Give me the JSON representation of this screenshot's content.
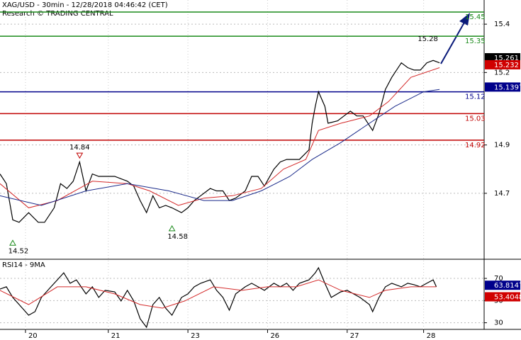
{
  "chart_data": [
    {
      "type": "line",
      "title": "XAG/USD - 30min - 12/28/2018 04:46:42 (CET)",
      "subtitle": "Research © TRADING CENTRAL",
      "xlim": [
        0,
        152
      ],
      "ylim": [
        14.43,
        15.5
      ],
      "xticks": [
        {
          "value": 8,
          "label": "20"
        },
        {
          "value": 34,
          "label": "21"
        },
        {
          "value": 59,
          "label": "23"
        },
        {
          "value": 84,
          "label": "26"
        },
        {
          "value": 109,
          "label": "27"
        },
        {
          "value": 133,
          "label": "28"
        }
      ],
      "yticks": [
        14.7,
        14.9,
        15.2,
        15.4
      ],
      "grid": true,
      "series": [
        {
          "color": "#000000",
          "x": [
            0,
            2,
            4,
            6,
            9,
            12,
            14,
            17,
            19,
            21,
            23,
            25,
            27,
            29,
            31,
            33,
            36,
            38,
            40,
            42,
            44,
            46,
            48,
            50,
            52,
            54,
            57,
            59,
            61,
            63,
            66,
            68,
            70,
            72,
            74,
            77,
            79,
            81,
            83,
            86,
            88,
            90,
            92,
            94,
            97,
            98,
            99,
            100,
            102,
            103,
            106,
            108,
            110,
            112,
            114,
            117,
            119,
            121,
            123,
            126,
            128,
            130,
            132,
            134,
            136,
            138
          ],
          "values": [
            14.78,
            14.74,
            14.59,
            14.58,
            14.62,
            14.58,
            14.58,
            14.64,
            14.74,
            14.72,
            14.75,
            14.83,
            14.71,
            14.78,
            14.77,
            14.77,
            14.77,
            14.76,
            14.75,
            14.73,
            14.67,
            14.62,
            14.69,
            14.64,
            14.65,
            14.64,
            14.62,
            14.64,
            14.67,
            14.69,
            14.72,
            14.71,
            14.71,
            14.67,
            14.68,
            14.71,
            14.77,
            14.77,
            14.73,
            14.8,
            14.83,
            14.84,
            14.84,
            14.84,
            14.88,
            14.99,
            15.06,
            15.12,
            15.06,
            14.99,
            15.0,
            15.02,
            15.04,
            15.02,
            15.02,
            14.96,
            15.03,
            15.13,
            15.18,
            15.24,
            15.22,
            15.21,
            15.21,
            15.24,
            15.25,
            15.24
          ]
        },
        {
          "color": "#d42a2a",
          "x": [
            0,
            9,
            18,
            29,
            40,
            47,
            56,
            64,
            73,
            82,
            89,
            96,
            100,
            107,
            116,
            122,
            129,
            138
          ],
          "values": [
            14.74,
            14.64,
            14.67,
            14.75,
            14.74,
            14.71,
            14.65,
            14.68,
            14.69,
            14.72,
            14.8,
            14.84,
            14.96,
            14.99,
            15.02,
            15.08,
            15.18,
            15.22
          ]
        },
        {
          "color": "#1a2a8a",
          "x": [
            0,
            13,
            27,
            40,
            53,
            64,
            73,
            82,
            91,
            98,
            107,
            116,
            124,
            133,
            138
          ],
          "values": [
            14.69,
            14.65,
            14.71,
            14.74,
            14.71,
            14.67,
            14.67,
            14.71,
            14.77,
            14.84,
            14.91,
            14.99,
            15.06,
            15.12,
            15.13
          ]
        }
      ],
      "levels": [
        {
          "value": 15.45,
          "color": "#1a8a1a"
        },
        {
          "value": 15.35,
          "color": "#1a8a1a"
        },
        {
          "value": 15.12,
          "color": "#00008b"
        },
        {
          "value": 15.03,
          "color": "#c00000"
        },
        {
          "value": 14.92,
          "color": "#c00000"
        }
      ],
      "annotations": [
        {
          "x": 25,
          "value": 14.84,
          "marker": "down"
        },
        {
          "x": 4,
          "value": 14.52,
          "marker": "up"
        },
        {
          "x": 54,
          "value": 14.58,
          "marker": "up"
        },
        {
          "x": 137,
          "value": 15.28,
          "marker": "none"
        }
      ],
      "price_labels": [
        {
          "value": 15.261,
          "color": "#000000"
        },
        {
          "value": 15.232,
          "color": "#d00000"
        },
        {
          "value": 15.1397,
          "color": "#00008b"
        }
      ]
    },
    {
      "type": "line",
      "title": "RSI14 - 9MA",
      "xlim": [
        0,
        152
      ],
      "ylim": [
        24,
        86
      ],
      "yticks": [
        30,
        50,
        70
      ],
      "grid": true,
      "series": [
        {
          "color": "#000000",
          "x": [
            0,
            2,
            4,
            7,
            9,
            11,
            13,
            16,
            18,
            20,
            22,
            24,
            27,
            29,
            31,
            33,
            36,
            38,
            40,
            42,
            44,
            46,
            48,
            50,
            52,
            54,
            57,
            59,
            61,
            63,
            66,
            68,
            70,
            72,
            74,
            77,
            79,
            81,
            83,
            86,
            88,
            90,
            92,
            94,
            97,
            99,
            100,
            102,
            104,
            107,
            109,
            111,
            113,
            116,
            117,
            119,
            121,
            123,
            126,
            128,
            130,
            132,
            134,
            136,
            137
          ],
          "values": [
            60.4,
            62.4,
            52.8,
            43.2,
            36.8,
            40.0,
            52.8,
            62.4,
            68.7,
            75.1,
            65.6,
            68.7,
            56.0,
            62.4,
            52.8,
            59.2,
            57.9,
            49.6,
            59.2,
            49.6,
            33.6,
            25.9,
            46.4,
            52.8,
            43.2,
            36.8,
            52.8,
            56.0,
            62.4,
            65.6,
            68.7,
            59.2,
            52.8,
            41.3,
            56.0,
            62.4,
            65.6,
            62.4,
            59.2,
            65.6,
            62.4,
            65.6,
            59.2,
            65.6,
            68.7,
            75.1,
            79.6,
            65.6,
            52.8,
            57.9,
            59.2,
            56.0,
            52.8,
            46.4,
            40.0,
            52.8,
            62.4,
            65.6,
            62.4,
            65.6,
            64.3,
            62.4,
            65.6,
            68.7,
            62.4
          ]
        },
        {
          "color": "#d42a2a",
          "x": [
            0,
            9,
            18,
            27,
            36,
            44,
            51,
            58,
            67,
            76,
            84,
            93,
            100,
            107,
            116,
            121,
            129,
            137
          ],
          "values": [
            59.2,
            46.4,
            62.4,
            62.4,
            56.0,
            46.4,
            43.2,
            49.6,
            62.4,
            59.2,
            62.4,
            62.4,
            68.7,
            59.2,
            52.8,
            59.2,
            62.4,
            62.4
          ]
        }
      ],
      "price_labels": [
        {
          "value": 63.8147,
          "color": "#00008b"
        },
        {
          "value": 53.4048,
          "color": "#d00000"
        }
      ]
    }
  ]
}
